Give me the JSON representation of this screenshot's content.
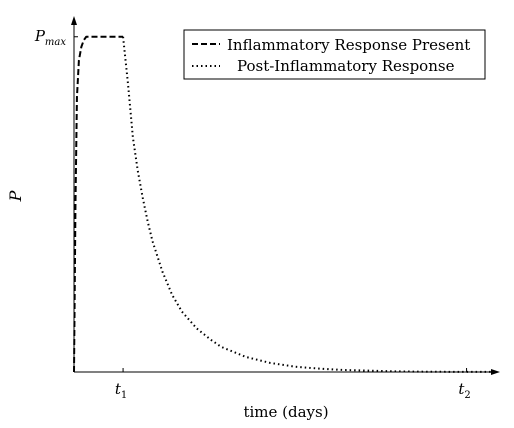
{
  "chart_data": {
    "type": "line",
    "title": "",
    "xlabel": "time (days)",
    "ylabel": "P",
    "xlim": [
      0,
      8.6
    ],
    "ylim": [
      0,
      1.05
    ],
    "x_ticks": [
      {
        "value": 1,
        "base": "t",
        "sub": "1"
      },
      {
        "value": 8,
        "base": "t",
        "sub": "2"
      }
    ],
    "y_ticks": [
      {
        "value": 1,
        "base": "P",
        "sub": "max"
      }
    ],
    "grid": false,
    "legend_position": "top-right",
    "series": [
      {
        "name": "Inflammatory Response Present",
        "style": "dashed",
        "x": [
          0,
          0.03,
          0.06,
          0.1,
          0.15,
          0.2,
          0.25,
          0.3,
          0.4,
          0.5,
          0.6,
          0.7,
          0.8,
          0.9,
          1.0
        ],
        "y": [
          0,
          0.5,
          0.82,
          0.93,
          0.97,
          0.99,
          1.0,
          1.0,
          1.0,
          1.0,
          1.0,
          1.0,
          1.0,
          1.0,
          1.0
        ]
      },
      {
        "name": "Post-Inflammatory Response",
        "style": "dotted",
        "x": [
          1.0,
          1.1,
          1.2,
          1.3,
          1.4,
          1.5,
          1.6,
          1.8,
          2.0,
          2.2,
          2.5,
          2.8,
          3.0,
          3.5,
          4.0,
          4.5,
          5.0,
          5.5,
          6.0,
          6.5,
          7.0,
          7.5,
          8.0,
          8.5
        ],
        "y": [
          1.0,
          0.86,
          0.7,
          0.6,
          0.52,
          0.45,
          0.39,
          0.3,
          0.23,
          0.18,
          0.13,
          0.095,
          0.075,
          0.045,
          0.027,
          0.016,
          0.01,
          0.006,
          0.004,
          0.002,
          0.001,
          0.0006,
          0.0003,
          0.0002
        ]
      }
    ]
  }
}
